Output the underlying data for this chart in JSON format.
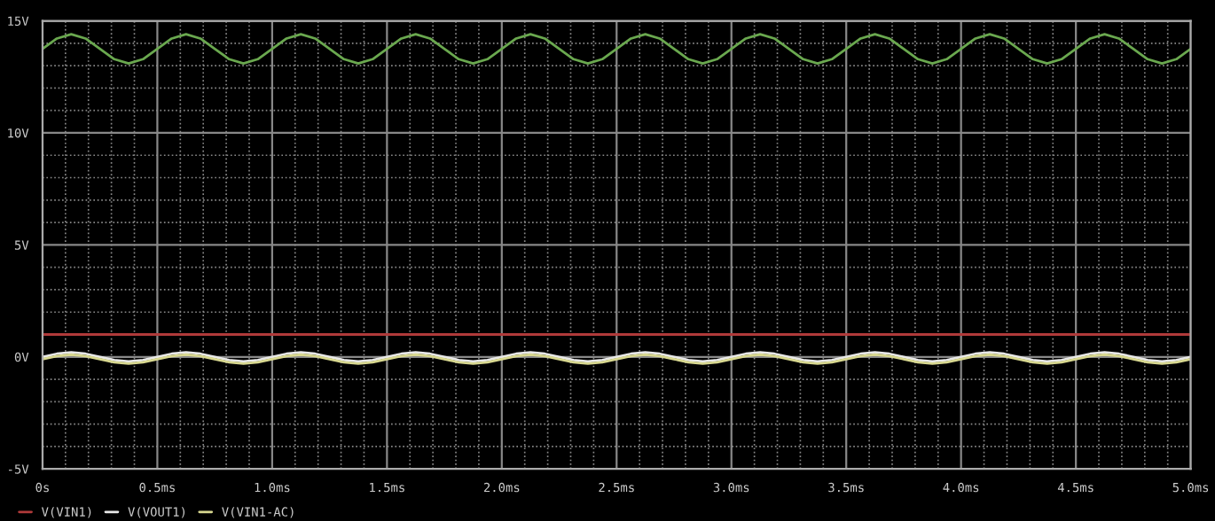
{
  "chart_data": {
    "type": "line",
    "x": [
      0,
      0.0625,
      0.125,
      0.1875,
      0.25,
      0.3125,
      0.375,
      0.4375,
      0.5,
      0.5625,
      0.625,
      0.6875,
      0.75,
      0.8125,
      0.875,
      0.9375,
      1,
      1.0625,
      1.125,
      1.1875,
      1.25,
      1.3125,
      1.375,
      1.4375,
      1.5,
      1.5625,
      1.625,
      1.6875,
      1.75,
      1.8125,
      1.875,
      1.9375,
      2,
      2.0625,
      2.125,
      2.1875,
      2.25,
      2.3125,
      2.375,
      2.4375,
      2.5,
      2.5625,
      2.625,
      2.6875,
      2.75,
      2.8125,
      2.875,
      2.9375,
      3,
      3.0625,
      3.125,
      3.1875,
      3.25,
      3.3125,
      3.375,
      3.4375,
      3.5,
      3.5625,
      3.625,
      3.6875,
      3.75,
      3.8125,
      3.875,
      3.9375,
      4,
      4.0625,
      4.125,
      4.1875,
      4.25,
      4.3125,
      4.375,
      4.4375,
      4.5,
      4.5625,
      4.625,
      4.6875,
      4.75,
      4.8125,
      4.875,
      4.9375,
      5
    ],
    "series": [
      {
        "name": "V(VIN1)",
        "color": "#b03a3a",
        "x": [
          0,
          5
        ],
        "values": [
          1,
          1
        ]
      },
      {
        "name": "V(VOUT1)",
        "color": "#e8e8e8",
        "values": [
          0,
          0.14,
          0.2,
          0.14,
          0,
          -0.14,
          -0.2,
          -0.14,
          0,
          0.14,
          0.2,
          0.14,
          0,
          -0.14,
          -0.2,
          -0.14,
          0,
          0.14,
          0.2,
          0.14,
          0,
          -0.14,
          -0.2,
          -0.14,
          0,
          0.14,
          0.2,
          0.14,
          0,
          -0.14,
          -0.2,
          -0.14,
          0,
          0.14,
          0.2,
          0.14,
          0,
          -0.14,
          -0.2,
          -0.14,
          0,
          0.14,
          0.2,
          0.14,
          0,
          -0.14,
          -0.2,
          -0.14,
          0,
          0.14,
          0.2,
          0.14,
          0,
          -0.14,
          -0.2,
          -0.14,
          0,
          0.14,
          0.2,
          0.14,
          0,
          -0.14,
          -0.2,
          -0.14,
          0,
          0.14,
          0.2,
          0.14,
          0,
          -0.14,
          -0.2,
          -0.14,
          0,
          0.14,
          0.2,
          0.14,
          0,
          -0.14,
          -0.2,
          -0.14,
          0
        ]
      },
      {
        "name": "V(VIN1-AC)",
        "color": "#d8d890",
        "values": [
          -0.1,
          0.04,
          0.1,
          0.04,
          -0.1,
          -0.24,
          -0.3,
          -0.24,
          -0.1,
          0.04,
          0.1,
          0.04,
          -0.1,
          -0.24,
          -0.3,
          -0.24,
          -0.1,
          0.04,
          0.1,
          0.04,
          -0.1,
          -0.24,
          -0.3,
          -0.24,
          -0.1,
          0.04,
          0.1,
          0.04,
          -0.1,
          -0.24,
          -0.3,
          -0.24,
          -0.1,
          0.04,
          0.1,
          0.04,
          -0.1,
          -0.24,
          -0.3,
          -0.24,
          -0.1,
          0.04,
          0.1,
          0.04,
          -0.1,
          -0.24,
          -0.3,
          -0.24,
          -0.1,
          0.04,
          0.1,
          0.04,
          -0.1,
          -0.24,
          -0.3,
          -0.24,
          -0.1,
          0.04,
          0.1,
          0.04,
          -0.1,
          -0.24,
          -0.3,
          -0.24,
          -0.1,
          0.04,
          0.1,
          0.04,
          -0.1,
          -0.24,
          -0.3,
          -0.24,
          -0.1,
          0.04,
          0.1,
          0.04,
          -0.1,
          -0.24,
          -0.3,
          -0.24,
          -0.1
        ]
      },
      {
        "color": "#6aa84f",
        "values": [
          13.75,
          14.21,
          14.4,
          14.21,
          13.75,
          13.29,
          13.1,
          13.29,
          13.75,
          14.21,
          14.4,
          14.21,
          13.75,
          13.29,
          13.1,
          13.29,
          13.75,
          14.21,
          14.4,
          14.21,
          13.75,
          13.29,
          13.1,
          13.29,
          13.75,
          14.21,
          14.4,
          14.21,
          13.75,
          13.29,
          13.1,
          13.29,
          13.75,
          14.21,
          14.4,
          14.21,
          13.75,
          13.29,
          13.1,
          13.29,
          13.75,
          14.21,
          14.4,
          14.21,
          13.75,
          13.29,
          13.1,
          13.29,
          13.75,
          14.21,
          14.4,
          14.21,
          13.75,
          13.29,
          13.1,
          13.29,
          13.75,
          14.21,
          14.4,
          14.21,
          13.75,
          13.29,
          13.1,
          13.29,
          13.75,
          14.21,
          14.4,
          14.21,
          13.75,
          13.29,
          13.1,
          13.29,
          13.75,
          14.21,
          14.4,
          14.21,
          13.75,
          13.29,
          13.1,
          13.29,
          13.75
        ]
      }
    ],
    "xlim": [
      0,
      5
    ],
    "xticks": [
      {
        "value": 0,
        "label": "0s"
      },
      {
        "value": 0.5,
        "label": "0.5ms"
      },
      {
        "value": 1,
        "label": "1.0ms"
      },
      {
        "value": 1.5,
        "label": "1.5ms"
      },
      {
        "value": 2,
        "label": "2.0ms"
      },
      {
        "value": 2.5,
        "label": "2.5ms"
      },
      {
        "value": 3,
        "label": "3.0ms"
      },
      {
        "value": 3.5,
        "label": "3.5ms"
      },
      {
        "value": 4,
        "label": "4.0ms"
      },
      {
        "value": 4.5,
        "label": "4.5ms"
      },
      {
        "value": 5,
        "label": "5.0ms"
      }
    ],
    "ylim": [
      -5,
      15
    ],
    "yticks": [
      {
        "value": -5,
        "label": "-5V"
      },
      {
        "value": 0,
        "label": "0V"
      },
      {
        "value": 5,
        "label": "5V"
      },
      {
        "value": 10,
        "label": "10V"
      },
      {
        "value": 15,
        "label": "15V"
      }
    ],
    "grid": true,
    "legend": "bottom left",
    "line_style": "solid",
    "marker": "none"
  }
}
